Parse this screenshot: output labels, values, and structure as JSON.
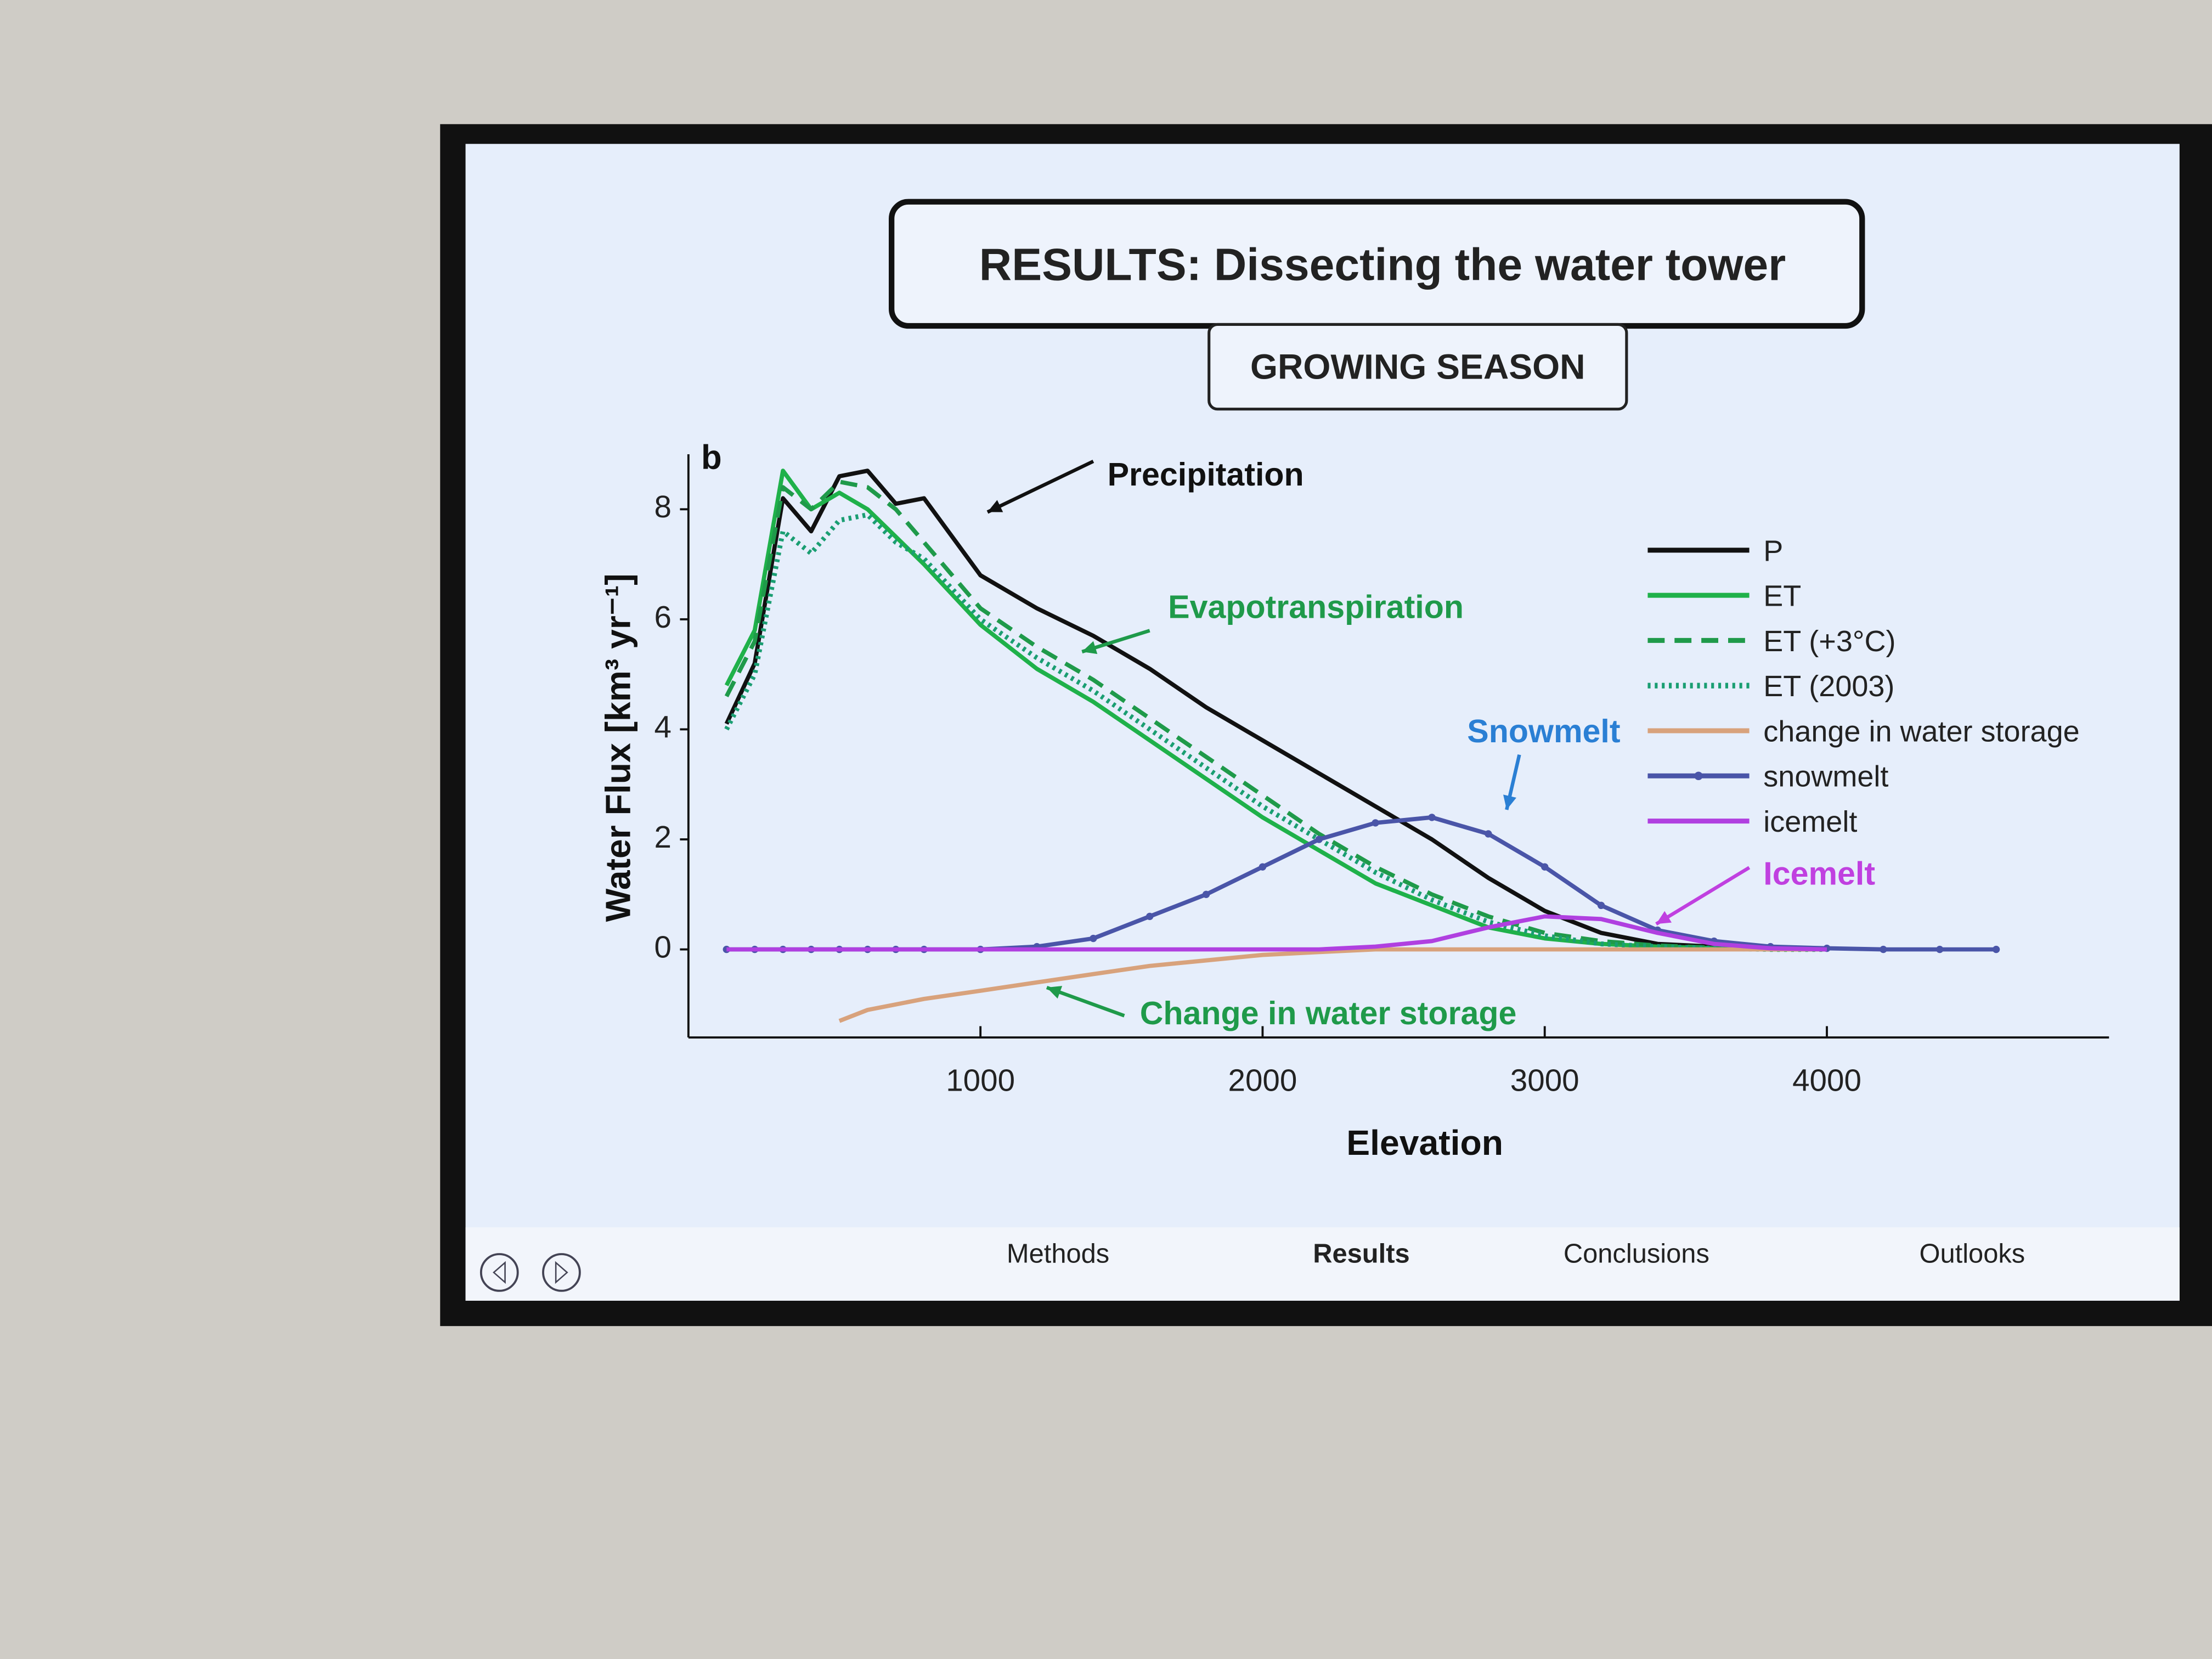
{
  "chart_data": {
    "type": "line",
    "title": "RESULTS: Dissecting the water tower",
    "subtitle": "GROWING SEASON",
    "panel_label": "b",
    "x_label": "Elevation",
    "y_label": "Water Flux  [km³ yr⁻¹]",
    "x": [
      100,
      200,
      300,
      400,
      500,
      600,
      700,
      800,
      1000,
      1200,
      1400,
      1600,
      1800,
      2000,
      2200,
      2400,
      2600,
      2800,
      3000,
      3200,
      3400,
      3600,
      3800,
      4000,
      4200,
      4400,
      4600
    ],
    "xlim": [
      0,
      5000
    ],
    "xticks": [
      1000,
      2000,
      3000,
      4000
    ],
    "ylim": [
      -1.6,
      9
    ],
    "yticks": [
      0,
      2,
      4,
      6,
      8
    ],
    "legend": "right",
    "series": [
      {
        "name": "P",
        "color": "#111111",
        "dash": "solid",
        "values": [
          4.1,
          5.2,
          8.2,
          7.6,
          8.6,
          8.7,
          8.1,
          8.2,
          6.8,
          6.2,
          5.7,
          5.1,
          4.4,
          3.8,
          3.2,
          2.6,
          2.0,
          1.3,
          0.7,
          0.3,
          0.1,
          0.05,
          0.02,
          0,
          null,
          null,
          null
        ]
      },
      {
        "name": "ET",
        "color": "#1fb14a",
        "dash": "solid",
        "values": [
          4.8,
          5.8,
          8.7,
          8.0,
          8.3,
          8.0,
          7.5,
          7.0,
          5.9,
          5.1,
          4.5,
          3.8,
          3.1,
          2.4,
          1.8,
          1.2,
          0.8,
          0.4,
          0.2,
          0.1,
          0.05,
          0.02,
          0,
          0,
          null,
          null,
          null
        ]
      },
      {
        "name": "ET (+3°C)",
        "color": "#1f9a4a",
        "dash": "dashed",
        "values": [
          4.6,
          5.6,
          8.4,
          8.0,
          8.5,
          8.4,
          8.0,
          7.4,
          6.2,
          5.5,
          4.9,
          4.2,
          3.5,
          2.8,
          2.1,
          1.5,
          1.0,
          0.6,
          0.3,
          0.15,
          0.07,
          0.03,
          0,
          0,
          null,
          null,
          null
        ]
      },
      {
        "name": "ET (2003)",
        "color": "#1a9e72",
        "dash": "dotted",
        "values": [
          4.0,
          5.0,
          7.6,
          7.2,
          7.8,
          7.9,
          7.4,
          7.1,
          6.0,
          5.3,
          4.7,
          4.0,
          3.3,
          2.6,
          2.0,
          1.4,
          0.9,
          0.5,
          0.25,
          0.1,
          0.05,
          0.02,
          0,
          0,
          null,
          null,
          null
        ]
      },
      {
        "name": "change in water storage",
        "color": "#d8a27c",
        "dash": "solid",
        "values": [
          null,
          null,
          null,
          null,
          -1.3,
          -1.1,
          -1.0,
          -0.9,
          -0.75,
          -0.6,
          -0.45,
          -0.3,
          -0.2,
          -0.1,
          -0.05,
          0,
          0,
          0,
          0,
          0,
          0,
          0,
          0,
          0,
          null,
          null,
          null
        ]
      },
      {
        "name": "snowmelt",
        "color": "#4a55a8",
        "dash": "solid",
        "marker": true,
        "values": [
          0,
          0,
          0,
          0,
          0,
          0,
          0,
          0,
          0,
          0.05,
          0.2,
          0.6,
          1.0,
          1.5,
          2.0,
          2.3,
          2.4,
          2.1,
          1.5,
          0.8,
          0.35,
          0.15,
          0.05,
          0.02,
          0,
          0,
          0
        ]
      },
      {
        "name": "icemelt",
        "color": "#b040e0",
        "dash": "solid",
        "values": [
          0,
          0,
          0,
          0,
          0,
          0,
          0,
          0,
          0,
          0,
          0,
          0,
          0,
          0,
          0,
          0.05,
          0.15,
          0.4,
          0.6,
          0.55,
          0.3,
          0.1,
          0.02,
          0,
          null,
          null,
          null
        ]
      }
    ],
    "annotations": [
      {
        "text": "Precipitation",
        "color": "#111111"
      },
      {
        "text": "Evapotranspiration",
        "color": "#1f9a4a"
      },
      {
        "text": "Snowmelt",
        "color": "#2a7fd4"
      },
      {
        "text": "Icemelt",
        "color": "#c040e0"
      },
      {
        "text": "Change in water storage",
        "color": "#1f9a4a"
      }
    ]
  },
  "navigation": {
    "items": [
      "Methods",
      "Results",
      "Conclusions",
      "Outlooks"
    ],
    "current": 1
  }
}
